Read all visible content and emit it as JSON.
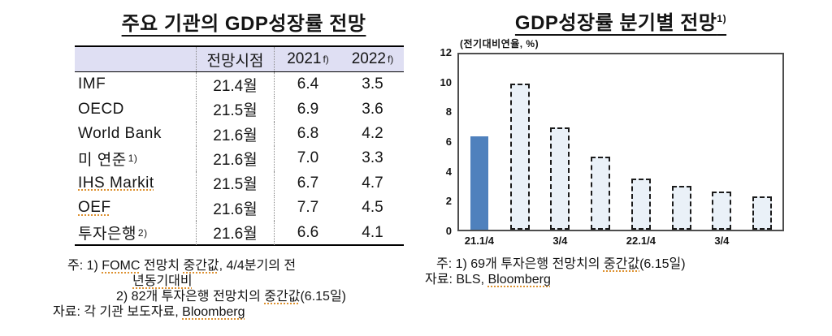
{
  "left_panel": {
    "title": "주요 기관의 GDP성장률 전망",
    "table": {
      "columns": [
        {
          "text": "",
          "sup": ""
        },
        {
          "text": "전망시점",
          "sup": ""
        },
        {
          "text": "2021",
          "sup": "f)"
        },
        {
          "text": "2022",
          "sup": "f)"
        }
      ],
      "rows": [
        {
          "institution": "IMF",
          "sup": "",
          "squiggle": false,
          "forecast_date": "21.4월",
          "gdp_2021": "6.4",
          "gdp_2022": "3.5"
        },
        {
          "institution": "OECD",
          "sup": "",
          "squiggle": false,
          "forecast_date": "21.5월",
          "gdp_2021": "6.9",
          "gdp_2022": "3.6"
        },
        {
          "institution": "World Bank",
          "sup": "",
          "squiggle": false,
          "forecast_date": "21.6월",
          "gdp_2021": "6.8",
          "gdp_2022": "4.2"
        },
        {
          "institution": "미 연준",
          "sup": "1)",
          "squiggle": false,
          "forecast_date": "21.6월",
          "gdp_2021": "7.0",
          "gdp_2022": "3.3"
        },
        {
          "institution": "IHS Markit",
          "sup": "",
          "squiggle": true,
          "forecast_date": "21.5월",
          "gdp_2021": "6.7",
          "gdp_2022": "4.7"
        },
        {
          "institution": "OEF",
          "sup": "",
          "squiggle": true,
          "forecast_date": "21.6월",
          "gdp_2021": "7.7",
          "gdp_2022": "4.5"
        },
        {
          "institution": "투자은행",
          "sup": "2)",
          "squiggle": false,
          "forecast_date": "21.6월",
          "gdp_2021": "6.6",
          "gdp_2022": "4.1"
        }
      ]
    },
    "notes": [
      {
        "segments": [
          {
            "text": "주: 1) ",
            "squiggle": false
          },
          {
            "text": "FOMC",
            "squiggle": true
          },
          {
            "text": " 전망치 ",
            "squiggle": false
          },
          {
            "text": "중간값",
            "squiggle": true
          },
          {
            "text": ", 4/4분기의 전",
            "squiggle": false
          }
        ]
      },
      {
        "segments": [
          {
            "text": "년동기대비",
            "squiggle": true
          }
        ]
      },
      {
        "segments": [
          {
            "text": "2) 82개 투자은행 전망치의 ",
            "squiggle": false
          },
          {
            "text": "중간값",
            "squiggle": true
          },
          {
            "text": "(6.15일)",
            "squiggle": false
          }
        ]
      },
      {
        "segments": [
          {
            "text": "자료: 각 기관 보도자료, ",
            "squiggle": false
          },
          {
            "text": "Bloomberg",
            "squiggle": true
          }
        ]
      }
    ]
  },
  "right_panel": {
    "title": "GDP성장률 분기별 전망",
    "title_sup": "1)",
    "unit_label": "(전기대비연율, %)",
    "notes": [
      {
        "segments": [
          {
            "text": "주: 1) 69개 투자은행 전망치의 ",
            "squiggle": false
          },
          {
            "text": "중간값",
            "squiggle": true
          },
          {
            "text": "(6.15일)",
            "squiggle": false
          }
        ]
      },
      {
        "segments": [
          {
            "text": "자료: BLS, ",
            "squiggle": false
          },
          {
            "text": "Bloomberg",
            "squiggle": true
          }
        ]
      }
    ]
  },
  "chart_data": {
    "type": "bar",
    "title": "GDP성장률 분기별 전망 1)",
    "unit_label": "(전기대비연율, %)",
    "x_tick_labels": [
      "21.1/4",
      "",
      "3/4",
      "",
      "22.1/4",
      "",
      "3/4",
      ""
    ],
    "values": [
      6.4,
      10.0,
      7.0,
      5.0,
      3.5,
      3.0,
      2.6,
      2.3
    ],
    "bar_kind": [
      "actual",
      "forecast",
      "forecast",
      "forecast",
      "forecast",
      "forecast",
      "forecast",
      "forecast"
    ],
    "yticks": [
      0,
      2,
      4,
      6,
      8,
      10,
      12
    ],
    "ylim": [
      0,
      12
    ],
    "grid": false,
    "legend": "none",
    "colors": {
      "actual_bar": "#4f81bd",
      "forecast_bar_fill": "#eaf1f8",
      "forecast_bar_border": "#1b1b1b"
    }
  }
}
